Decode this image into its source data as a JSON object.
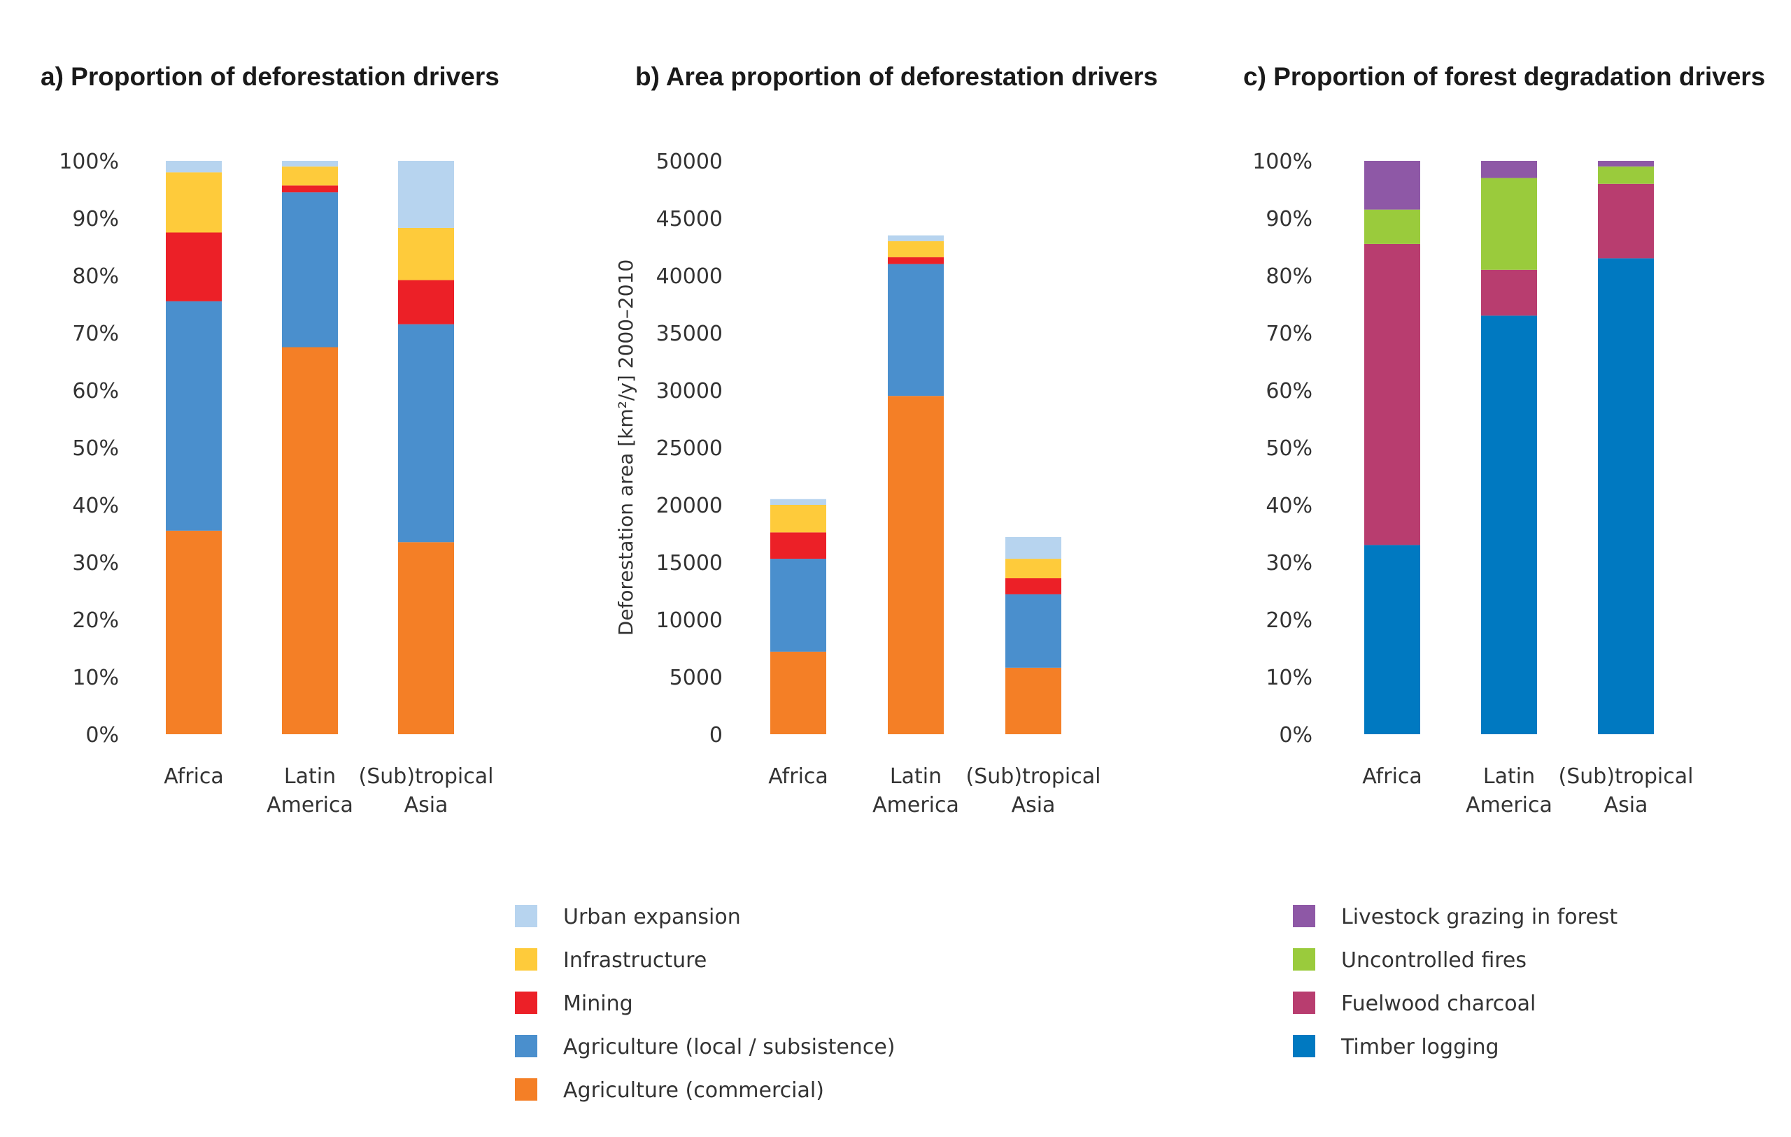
{
  "chart_data": [
    {
      "type": "bar",
      "stacked": true,
      "title": "a) Proportion of deforestation drivers",
      "categories": [
        [
          "Africa"
        ],
        [
          "Latin",
          "America"
        ],
        [
          "(Sub)tropical",
          "Asia"
        ]
      ],
      "ylabel": "",
      "ylim": [
        0,
        100
      ],
      "yticks": [
        "0%",
        "10%",
        "20%",
        "30%",
        "40%",
        "50%",
        "60%",
        "70%",
        "80%",
        "90%",
        "100%"
      ],
      "series": [
        {
          "name": "Agriculture (commercial)",
          "color": "#f47f26",
          "values": [
            35.5,
            67.5,
            33.5
          ]
        },
        {
          "name": "Agriculture (local / subsistence)",
          "color": "#4a8fcd",
          "values": [
            40,
            27,
            38
          ]
        },
        {
          "name": "Mining",
          "color": "#ec2027",
          "values": [
            12,
            1.2,
            7.7
          ]
        },
        {
          "name": "Infrastructure",
          "color": "#fecb3b",
          "values": [
            10.5,
            3.3,
            9.1
          ]
        },
        {
          "name": "Urban expansion",
          "color": "#b7d4ef",
          "values": [
            2,
            1,
            11.7
          ]
        }
      ]
    },
    {
      "type": "bar",
      "stacked": true,
      "title": "b) Area proportion of deforestation drivers",
      "categories": [
        [
          "Africa"
        ],
        [
          "Latin",
          "America"
        ],
        [
          "(Sub)tropical",
          "Asia"
        ]
      ],
      "ylabel": "Deforestation area [km²/y] 2000–2010",
      "ylim": [
        0,
        50000
      ],
      "yticks": [
        "0",
        "5000",
        "10000",
        "15000",
        "20000",
        "25000",
        "30000",
        "35000",
        "40000",
        "45000",
        "50000"
      ],
      "series": [
        {
          "name": "Agriculture (commercial)",
          "color": "#f47f26",
          "values": [
            7200,
            29500,
            5800
          ]
        },
        {
          "name": "Agriculture (local / subsistence)",
          "color": "#4a8fcd",
          "values": [
            8100,
            11500,
            6400
          ]
        },
        {
          "name": "Mining",
          "color": "#ec2027",
          "values": [
            2300,
            600,
            1400
          ]
        },
        {
          "name": "Infrastructure",
          "color": "#fecb3b",
          "values": [
            2400,
            1400,
            1700
          ]
        },
        {
          "name": "Urban expansion",
          "color": "#b7d4ef",
          "values": [
            500,
            500,
            1900
          ]
        }
      ]
    },
    {
      "type": "bar",
      "stacked": true,
      "title": "c) Proportion of forest degradation drivers",
      "categories": [
        [
          "Africa"
        ],
        [
          "Latin",
          "America"
        ],
        [
          "(Sub)tropical",
          "Asia"
        ]
      ],
      "ylabel": "",
      "ylim": [
        0,
        100
      ],
      "yticks": [
        "0%",
        "10%",
        "20%",
        "30%",
        "40%",
        "50%",
        "60%",
        "70%",
        "80%",
        "90%",
        "100%"
      ],
      "series": [
        {
          "name": "Timber logging",
          "color": "#0079c1",
          "values": [
            33,
            73,
            83
          ]
        },
        {
          "name": "Fuelwood charcoal",
          "color": "#b83d6f",
          "values": [
            52.5,
            8,
            13
          ]
        },
        {
          "name": "Uncontrolled fires",
          "color": "#9acb3c",
          "values": [
            6,
            16,
            3
          ]
        },
        {
          "name": "Livestock grazing in forest",
          "color": "#8e58a6",
          "values": [
            8.5,
            3,
            1
          ]
        }
      ]
    }
  ],
  "legends": [
    {
      "items": [
        {
          "label": "Urban expansion",
          "color": "#b7d4ef"
        },
        {
          "label": "Infrastructure",
          "color": "#fecb3b"
        },
        {
          "label": "Mining",
          "color": "#ec2027"
        },
        {
          "label": "Agriculture (local / subsistence)",
          "color": "#4a8fcd"
        },
        {
          "label": "Agriculture (commercial)",
          "color": "#f47f26"
        }
      ]
    },
    {
      "items": [
        {
          "label": "Livestock grazing in forest",
          "color": "#8e58a6"
        },
        {
          "label": "Uncontrolled fires",
          "color": "#9acb3c"
        },
        {
          "label": "Fuelwood charcoal",
          "color": "#b83d6f"
        },
        {
          "label": "Timber logging",
          "color": "#0079c1"
        }
      ]
    }
  ]
}
